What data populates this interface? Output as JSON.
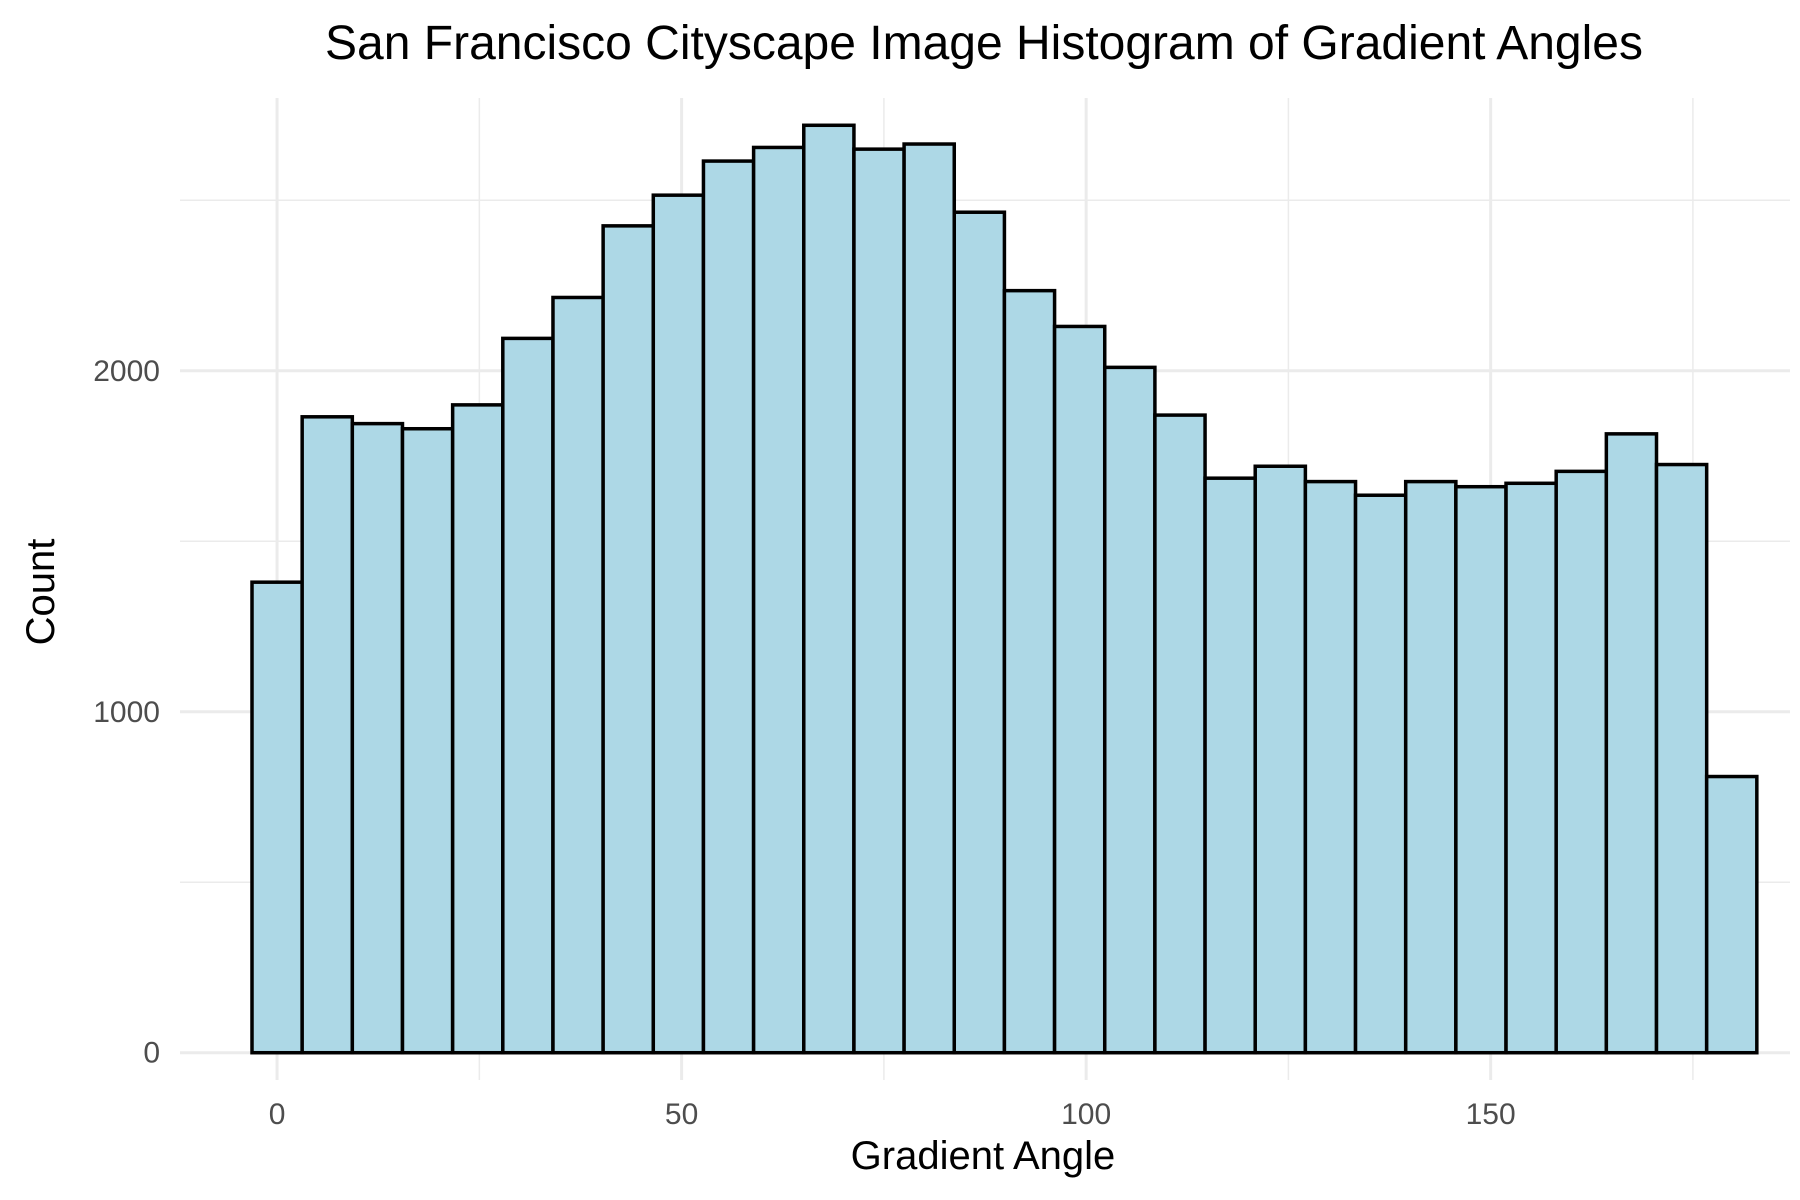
{
  "chart_data": {
    "type": "bar",
    "title": "San Francisco Cityscape Image Histogram of Gradient Angles",
    "xlabel": "Gradient Angle",
    "ylabel": "Count",
    "x_ticks": [
      0,
      50,
      100,
      150
    ],
    "y_ticks": [
      0,
      1000,
      2000
    ],
    "xlim": [
      -12,
      187
    ],
    "ylim": [
      -80,
      2800
    ],
    "bin_width": 6.2,
    "bin_start": -3.1,
    "values": [
      1380,
      1865,
      1845,
      1830,
      1900,
      2095,
      2215,
      2425,
      2515,
      2615,
      2655,
      2720,
      2650,
      2665,
      2465,
      2235,
      2130,
      2010,
      1870,
      1685,
      1720,
      1675,
      1635,
      1675,
      1660,
      1670,
      1705,
      1815,
      1725,
      810
    ],
    "grid": true,
    "bar_fill": "#add8e6",
    "bar_stroke": "#000000",
    "grid_color": "#ebebeb"
  }
}
